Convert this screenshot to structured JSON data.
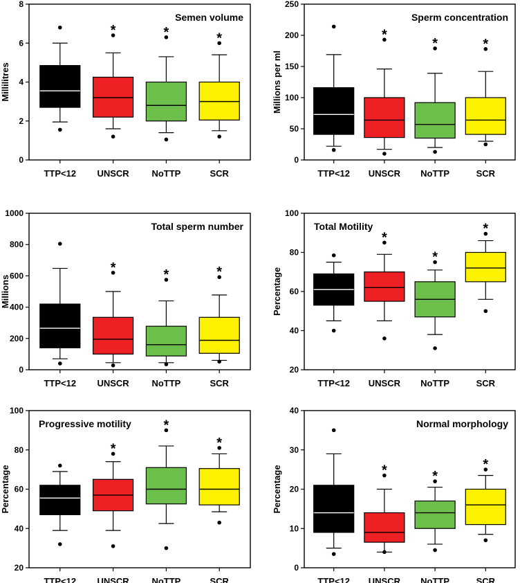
{
  "chart_data": [
    {
      "type": "box",
      "title": "Semen volume",
      "ylabel": "Millilitres",
      "ylim": [
        0,
        8
      ],
      "yticks": [
        "0",
        "2",
        "4",
        "6",
        "8"
      ],
      "yticks_values": [
        0,
        2,
        4,
        6,
        8
      ],
      "title_pos": "top-right",
      "categories": [
        "TTP<12",
        "UNSCR",
        "NoTTP",
        "SCR"
      ],
      "colors": [
        "#000000",
        "#ee2024",
        "#6cbf4a",
        "#fff200"
      ],
      "median_colors": [
        "#ffffff",
        "#000000",
        "#000000",
        "#000000"
      ],
      "boxes": [
        {
          "whisker_low": 1.95,
          "q1": 2.7,
          "median": 3.55,
          "q3": 4.85,
          "whisker_high": 6.0,
          "outliers": [
            1.55,
            6.8
          ],
          "star": false
        },
        {
          "whisker_low": 1.6,
          "q1": 2.2,
          "median": 3.2,
          "q3": 4.25,
          "whisker_high": 5.5,
          "outliers": [
            1.2,
            6.4
          ],
          "star": true
        },
        {
          "whisker_low": 1.4,
          "q1": 2.0,
          "median": 2.8,
          "q3": 4.0,
          "whisker_high": 5.3,
          "outliers": [
            1.05,
            6.3
          ],
          "star": true
        },
        {
          "whisker_low": 1.5,
          "q1": 2.05,
          "median": 3.0,
          "q3": 4.0,
          "whisker_high": 5.4,
          "outliers": [
            1.2,
            6.0
          ],
          "star": true
        }
      ]
    },
    {
      "type": "box",
      "title": "Sperm concentration",
      "ylabel": "Millions per ml",
      "ylim": [
        0,
        250
      ],
      "yticks": [
        "0",
        "50",
        "100",
        "150",
        "200",
        "250"
      ],
      "yticks_values": [
        0,
        50,
        100,
        150,
        200,
        250
      ],
      "title_pos": "top-right",
      "categories": [
        "TTP<12",
        "UNSCR",
        "NoTTP",
        "SCR"
      ],
      "colors": [
        "#000000",
        "#ee2024",
        "#6cbf4a",
        "#fff200"
      ],
      "median_colors": [
        "#ffffff",
        "#000000",
        "#000000",
        "#000000"
      ],
      "boxes": [
        {
          "whisker_low": 22,
          "q1": 41,
          "median": 73,
          "q3": 116,
          "whisker_high": 169,
          "outliers": [
            16,
            214
          ],
          "star": false
        },
        {
          "whisker_low": 17,
          "q1": 36,
          "median": 64,
          "q3": 100,
          "whisker_high": 146,
          "outliers": [
            10,
            193
          ],
          "star": true
        },
        {
          "whisker_low": 20,
          "q1": 35,
          "median": 57,
          "q3": 92,
          "whisker_high": 139,
          "outliers": [
            13,
            179
          ],
          "star": true
        },
        {
          "whisker_low": 30,
          "q1": 41,
          "median": 64,
          "q3": 100,
          "whisker_high": 142,
          "outliers": [
            25,
            178
          ],
          "star": true
        }
      ]
    },
    {
      "type": "box",
      "title": "Total sperm number",
      "ylabel": "Millions",
      "ylim": [
        0,
        1000
      ],
      "yticks": [
        "0",
        "200",
        "400",
        "600",
        "800",
        "1000"
      ],
      "yticks_values": [
        0,
        200,
        400,
        600,
        800,
        1000
      ],
      "title_pos": "top-right",
      "categories": [
        "TTP<12",
        "UNSCR",
        "NoTTP",
        "SCR"
      ],
      "colors": [
        "#000000",
        "#ee2024",
        "#6cbf4a",
        "#fff200"
      ],
      "median_colors": [
        "#ffffff",
        "#000000",
        "#000000",
        "#000000"
      ],
      "boxes": [
        {
          "whisker_low": 70,
          "q1": 140,
          "median": 265,
          "q3": 420,
          "whisker_high": 648,
          "outliers": [
            40,
            805
          ],
          "star": false
        },
        {
          "whisker_low": 45,
          "q1": 100,
          "median": 195,
          "q3": 335,
          "whisker_high": 500,
          "outliers": [
            28,
            620
          ],
          "star": true
        },
        {
          "whisker_low": 45,
          "q1": 88,
          "median": 160,
          "q3": 278,
          "whisker_high": 440,
          "outliers": [
            35,
            575
          ],
          "star": true
        },
        {
          "whisker_low": 60,
          "q1": 105,
          "median": 188,
          "q3": 335,
          "whisker_high": 478,
          "outliers": [
            52,
            592
          ],
          "star": true
        }
      ]
    },
    {
      "type": "box",
      "title": "Total Motility",
      "ylabel": "Percentage",
      "ylim": [
        20,
        100
      ],
      "yticks": [
        "20",
        "40",
        "60",
        "80",
        "100"
      ],
      "yticks_values": [
        20,
        40,
        60,
        80,
        100
      ],
      "title_pos": "top-left",
      "categories": [
        "TTP<12",
        "UNSCR",
        "NoTTP",
        "SCR"
      ],
      "colors": [
        "#000000",
        "#ee2024",
        "#6cbf4a",
        "#fff200"
      ],
      "median_colors": [
        "#ffffff",
        "#000000",
        "#000000",
        "#000000"
      ],
      "boxes": [
        {
          "whisker_low": 45,
          "q1": 53,
          "median": 61,
          "q3": 69,
          "whisker_high": 75,
          "outliers": [
            40,
            78.5
          ],
          "star": false
        },
        {
          "whisker_low": 45,
          "q1": 55,
          "median": 62,
          "q3": 70,
          "whisker_high": 79,
          "outliers": [
            36,
            85
          ],
          "star": true
        },
        {
          "whisker_low": 38,
          "q1": 47,
          "median": 56,
          "q3": 65,
          "whisker_high": 71,
          "outliers": [
            31,
            75
          ],
          "star": true
        },
        {
          "whisker_low": 56,
          "q1": 65,
          "median": 72,
          "q3": 80,
          "whisker_high": 86,
          "outliers": [
            50,
            89.5
          ],
          "star": true
        }
      ]
    },
    {
      "type": "box",
      "title": "Progressive motility",
      "ylabel": "Percentage",
      "ylim": [
        20,
        100
      ],
      "yticks": [
        "20",
        "40",
        "60",
        "80",
        "100"
      ],
      "yticks_values": [
        20,
        40,
        60,
        80,
        100
      ],
      "title_pos": "top-left",
      "categories": [
        "TTP<12",
        "UNSCR",
        "NoTTP",
        "SCR"
      ],
      "colors": [
        "#000000",
        "#ee2024",
        "#6cbf4a",
        "#fff200"
      ],
      "median_colors": [
        "#ffffff",
        "#000000",
        "#000000",
        "#000000"
      ],
      "boxes": [
        {
          "whisker_low": 39,
          "q1": 47,
          "median": 55.5,
          "q3": 62,
          "whisker_high": 69,
          "outliers": [
            32,
            72
          ],
          "star": false
        },
        {
          "whisker_low": 39,
          "q1": 49,
          "median": 57,
          "q3": 65,
          "whisker_high": 74,
          "outliers": [
            31,
            78
          ],
          "star": true
        },
        {
          "whisker_low": 42.5,
          "q1": 52.5,
          "median": 60,
          "q3": 71,
          "whisker_high": 82,
          "outliers": [
            30,
            90
          ],
          "star": true
        },
        {
          "whisker_low": 48.5,
          "q1": 52,
          "median": 60,
          "q3": 70.5,
          "whisker_high": 78,
          "outliers": [
            43,
            81
          ],
          "star": true
        }
      ]
    },
    {
      "type": "box",
      "title": "Normal morphology",
      "ylabel": "Percentage",
      "ylim": [
        0,
        40
      ],
      "yticks": [
        "0",
        "10",
        "20",
        "30",
        "40"
      ],
      "yticks_values": [
        0,
        10,
        20,
        30,
        40
      ],
      "title_pos": "top-right",
      "categories": [
        "TTP<12",
        "UNSCR",
        "NoTTP",
        "SCR"
      ],
      "colors": [
        "#000000",
        "#ee2024",
        "#6cbf4a",
        "#fff200"
      ],
      "median_colors": [
        "#ffffff",
        "#000000",
        "#000000",
        "#000000"
      ],
      "boxes": [
        {
          "whisker_low": 5,
          "q1": 9,
          "median": 14,
          "q3": 21,
          "whisker_high": 29,
          "outliers": [
            3.5,
            35
          ],
          "star": false
        },
        {
          "whisker_low": 4,
          "q1": 6.5,
          "median": 9,
          "q3": 14,
          "whisker_high": 20,
          "outliers": [
            4,
            23.5
          ],
          "star": true
        },
        {
          "whisker_low": 6,
          "q1": 10,
          "median": 14,
          "q3": 17,
          "whisker_high": 20.5,
          "outliers": [
            4.5,
            22
          ],
          "star": true
        },
        {
          "whisker_low": 8.5,
          "q1": 11,
          "median": 16,
          "q3": 20,
          "whisker_high": 23.5,
          "outliers": [
            7,
            25
          ],
          "star": true
        }
      ]
    }
  ]
}
